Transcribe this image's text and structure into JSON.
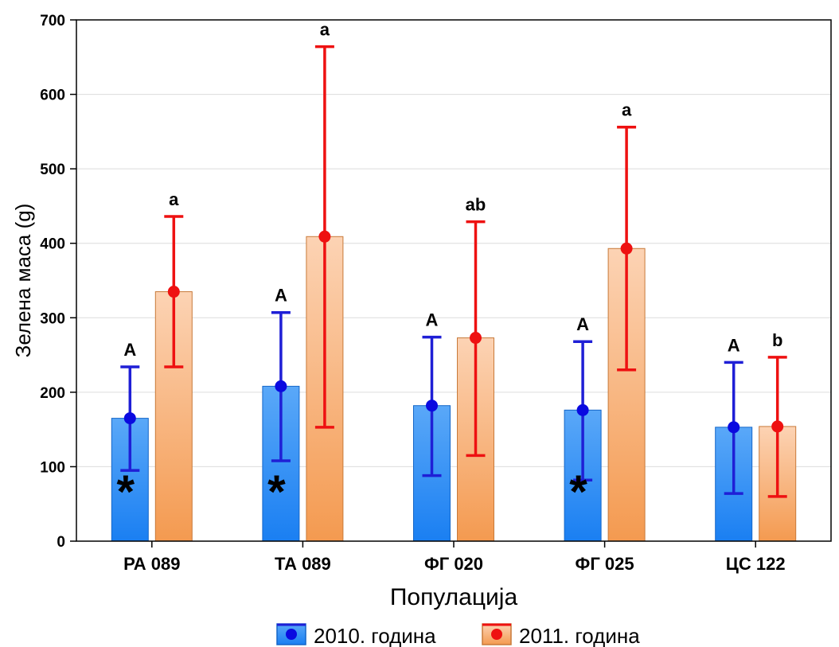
{
  "chart_data": {
    "type": "bar",
    "xlabel": "Популација",
    "ylabel": "Зелена маса (g)",
    "ylim": [
      0,
      700
    ],
    "yticks": [
      0,
      100,
      200,
      300,
      400,
      500,
      600,
      700
    ],
    "categories": [
      "РА 089",
      "ТА 089",
      "ФГ 020",
      "ФГ 025",
      "ЦС 122"
    ],
    "grid": true,
    "legend_position": "bottom",
    "series": [
      {
        "name": "2010. година",
        "color": "#1e86f5",
        "marker_color": "#0a0ae0",
        "error_color": "#1f1fd6",
        "values": [
          165,
          208,
          182,
          176,
          153
        ],
        "error_low": [
          95,
          108,
          88,
          82,
          64
        ],
        "error_high": [
          234,
          307,
          274,
          268,
          240
        ],
        "labels": [
          "A",
          "A",
          "A",
          "A",
          "A"
        ]
      },
      {
        "name": "2011. година",
        "color": "#f5a060",
        "marker_color": "#ee1111",
        "error_color": "#ee1111",
        "values": [
          335,
          409,
          273,
          393,
          154
        ],
        "error_low": [
          234,
          153,
          115,
          230,
          60
        ],
        "error_high": [
          436,
          664,
          429,
          556,
          247
        ],
        "labels": [
          "a",
          "a",
          "ab",
          "a",
          "b"
        ]
      }
    ],
    "annotations": [
      {
        "category": "РА 089",
        "text": "*"
      },
      {
        "category": "ТА 089",
        "text": "*"
      },
      {
        "category": "ФГ 025",
        "text": "*"
      }
    ]
  }
}
